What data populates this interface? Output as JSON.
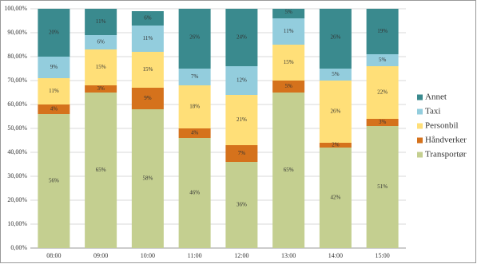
{
  "chart_data": {
    "type": "stacked_bar_100",
    "categories": [
      "08:00",
      "09:00",
      "10:00",
      "11:00",
      "12:00",
      "13:00",
      "14:00",
      "15:00"
    ],
    "series": [
      {
        "name": "Transportør",
        "color": "#c4cf90",
        "values": [
          56,
          65,
          58,
          46,
          36,
          65,
          42,
          51
        ],
        "value_labels": [
          "56%",
          "65%",
          "58%",
          "46%",
          "36%",
          "65%",
          "42%",
          "51%"
        ]
      },
      {
        "name": "Håndverker",
        "color": "#d5721c",
        "values": [
          4,
          3,
          9,
          4,
          7,
          5,
          2,
          3
        ],
        "value_labels": [
          "4%",
          "3%",
          "9%",
          "4%",
          "7%",
          "5%",
          "2%",
          "3%"
        ]
      },
      {
        "name": "Personbil",
        "color": "#ffdf78",
        "values": [
          11,
          15,
          15,
          18,
          21,
          15,
          26,
          22
        ],
        "value_labels": [
          "11%",
          "15%",
          "15%",
          "18%",
          "21%",
          "15%",
          "26%",
          "22%"
        ]
      },
      {
        "name": "Taxi",
        "color": "#93cddd",
        "values": [
          9,
          6,
          11,
          7,
          12,
          11,
          5,
          5
        ],
        "value_labels": [
          "9%",
          "6%",
          "11%",
          "7%",
          "12%",
          "11%",
          "5%",
          "5%"
        ]
      },
      {
        "name": "Annet",
        "color": "#3a8a8e",
        "values": [
          20,
          11,
          6,
          26,
          24,
          5,
          26,
          19
        ],
        "value_labels": [
          "20%",
          "11%",
          "6%",
          "26%",
          "24%",
          "5%",
          "26%",
          "19%"
        ]
      }
    ],
    "ylim": [
      0,
      100
    ],
    "yticks": [
      {
        "value": 0,
        "label": "0,00%"
      },
      {
        "value": 10,
        "label": "10,00%"
      },
      {
        "value": 20,
        "label": "20,00%"
      },
      {
        "value": 30,
        "label": "30,00%"
      },
      {
        "value": 40,
        "label": "40,00%"
      },
      {
        "value": 50,
        "label": "50,00%"
      },
      {
        "value": 60,
        "label": "60,00%"
      },
      {
        "value": 70,
        "label": "70,00%"
      },
      {
        "value": 80,
        "label": "80,00%"
      },
      {
        "value": 90,
        "label": "90,00%"
      },
      {
        "value": 100,
        "label": "100,00%"
      }
    ],
    "grid": true,
    "legend": "right"
  }
}
